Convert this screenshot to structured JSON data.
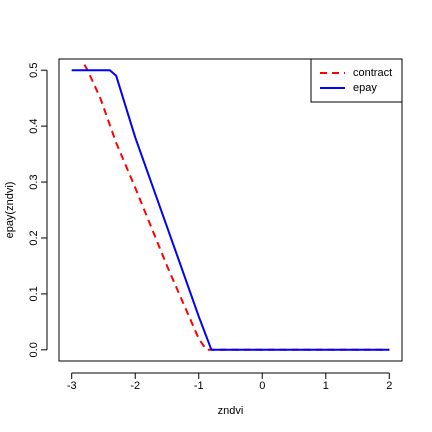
{
  "chart_data": {
    "type": "line",
    "title": "",
    "xlabel": "zndvi",
    "ylabel": "epay(zndvi)",
    "xlim": [
      -3.2,
      2.2
    ],
    "ylim": [
      -0.02,
      0.52
    ],
    "xticks": [
      -3,
      -2,
      -1,
      0,
      1,
      2
    ],
    "xtick_labels": [
      "-3",
      "-2",
      "-1",
      "0",
      "1",
      "2"
    ],
    "yticks": [
      0.0,
      0.1,
      0.2,
      0.3,
      0.4,
      0.5
    ],
    "ytick_labels": [
      "0.0",
      "0.1",
      "0.2",
      "0.3",
      "0.4",
      "0.5"
    ],
    "grid": false,
    "legend_position": "top-right",
    "series": [
      {
        "name": "contract",
        "color": "#ff0000",
        "dash": "dashed",
        "x": [
          -2.8,
          -2.75,
          -2.55,
          -2.3,
          -2.0,
          -1.5,
          -1.0,
          -0.88,
          2.0
        ],
        "y": [
          0.51,
          0.5,
          0.45,
          0.37,
          0.29,
          0.15,
          0.02,
          0.0,
          0.0
        ]
      },
      {
        "name": "epay",
        "color": "#0000ff",
        "dash": "solid",
        "x": [
          -3.0,
          -2.4,
          -2.3,
          -2.0,
          -1.5,
          -1.0,
          -0.8,
          2.0
        ],
        "y": [
          0.5,
          0.5,
          0.49,
          0.38,
          0.22,
          0.06,
          0.0,
          0.0
        ]
      }
    ]
  }
}
